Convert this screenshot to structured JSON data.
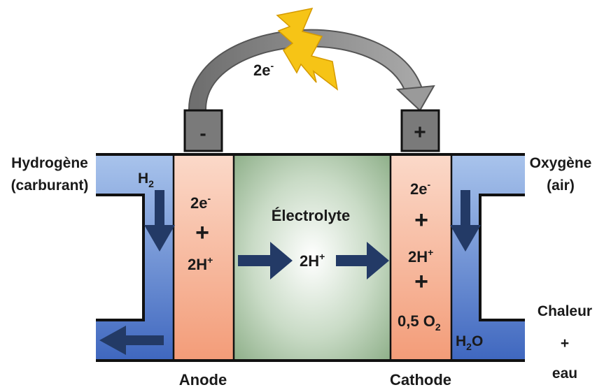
{
  "diagram": {
    "labels": {
      "electron_flow": "2e",
      "electron_flow_sup": "-",
      "negative_terminal": "-",
      "positive_terminal": "+",
      "fuel_inlet_line1": "Hydrogène",
      "fuel_inlet_line2": "(carburant)",
      "oxygen_inlet_line1": "Oxygène",
      "oxygen_inlet_line2": "(air)",
      "h2": "H",
      "h2_sub": "2",
      "anode_electrons": "2e",
      "anode_electrons_sup": "-",
      "anode_plus": "+",
      "anode_protons": "2H",
      "anode_protons_sup": "+",
      "electrolyte": "Électrolyte",
      "electrolyte_protons": "2H",
      "electrolyte_protons_sup": "+",
      "cathode_electrons": "2e",
      "cathode_electrons_sup": "-",
      "cathode_plus1": "+",
      "cathode_protons": "2H",
      "cathode_protons_sup": "+",
      "cathode_plus2": "+",
      "cathode_oxygen": "0,5 O",
      "cathode_oxygen_sub": "2",
      "water": "H",
      "water_sub": "2",
      "water_end": "O",
      "outlet_line1": "Chaleur",
      "outlet_line2": "+",
      "outlet_line3": "eau",
      "anode": "Anode",
      "cathode": "Cathode"
    },
    "colors": {
      "channel_blue": "#8fb0e0",
      "channel_blue_dark": "#3d63b8",
      "electrode_pink": "#f7cbb6",
      "electrode_orange": "#f5a07c",
      "electrolyte_green": "#98b894",
      "arrow_navy": "#233a66",
      "terminal_gray": "#7a7a7a",
      "bolt_yellow": "#f5c314",
      "wire_gray": "#8f8f8f"
    }
  }
}
